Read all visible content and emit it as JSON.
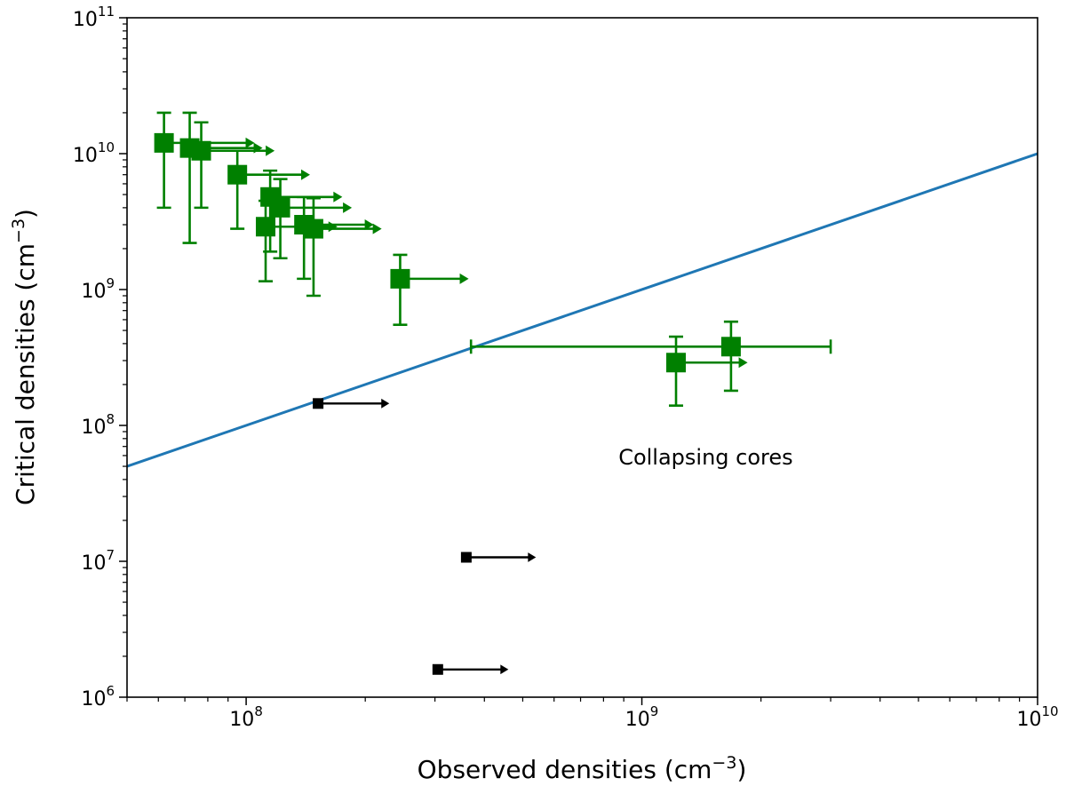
{
  "chart_data": {
    "type": "scatter",
    "title": "",
    "xlabel": {
      "text": "Observed densities (cm",
      "sup": "−3",
      "close": ")"
    },
    "ylabel": {
      "text": "Critical densities (cm",
      "sup": "−3",
      "close": ")"
    },
    "xscale": "log",
    "yscale": "log",
    "xlim": [
      50000000,
      10000000000
    ],
    "ylim": [
      1000000,
      100000000000
    ],
    "x_major_ticks": [
      {
        "value": 100000000,
        "base": "10",
        "exp": "8"
      },
      {
        "value": 1000000000,
        "base": "10",
        "exp": "9"
      },
      {
        "value": 10000000000,
        "base": "10",
        "exp": "10"
      }
    ],
    "y_major_ticks": [
      {
        "value": 1000000,
        "base": "10",
        "exp": "6"
      },
      {
        "value": 10000000,
        "base": "10",
        "exp": "7"
      },
      {
        "value": 100000000,
        "base": "10",
        "exp": "8"
      },
      {
        "value": 1000000000,
        "base": "10",
        "exp": "9"
      },
      {
        "value": 10000000000,
        "base": "10",
        "exp": "10"
      },
      {
        "value": 100000000000,
        "base": "10",
        "exp": "11"
      }
    ],
    "grid": false,
    "legend": null,
    "line": {
      "name": "equality line",
      "color": "#1f77b4",
      "x": [
        50000000,
        10000000000
      ],
      "y": [
        50000000,
        10000000000
      ]
    },
    "series": [
      {
        "name": "green cores",
        "color": "#008000",
        "marker": "square",
        "points": [
          {
            "x": 62000000,
            "y": 12000000000,
            "ylo": 4000000000,
            "yhi": 20000000000,
            "xlimit": 105000000
          },
          {
            "x": 72000000,
            "y": 11000000000,
            "ylo": 2200000000,
            "yhi": 20000000000,
            "xlimit": 110000000
          },
          {
            "x": 77000000,
            "y": 10500000000,
            "ylo": 4000000000,
            "yhi": 17000000000,
            "xlimit": 118000000
          },
          {
            "x": 95000000,
            "y": 7000000000,
            "ylo": 2800000000,
            "yhi": 10500000000,
            "xlimit": 145000000
          },
          {
            "x": 115000000,
            "y": 4800000000,
            "ylo": 1900000000,
            "yhi": 7500000000,
            "xlimit": 175000000
          },
          {
            "x": 122000000,
            "y": 4000000000,
            "ylo": 1700000000,
            "yhi": 6500000000,
            "xlimit": 185000000
          },
          {
            "x": 112000000,
            "y": 2900000000,
            "ylo": 1150000000,
            "yhi": 4500000000,
            "xlimit": 170000000
          },
          {
            "x": 140000000,
            "y": 3000000000,
            "ylo": 1200000000,
            "yhi": 4800000000,
            "xlimit": 210000000
          },
          {
            "x": 148000000,
            "y": 2800000000,
            "ylo": 900000000,
            "yhi": 4700000000,
            "xlimit": 220000000
          },
          {
            "x": 245000000,
            "y": 1200000000,
            "ylo": 550000000,
            "yhi": 1800000000,
            "xlimit": 365000000
          },
          {
            "x": 1220000000,
            "y": 290000000,
            "ylo": 140000000,
            "yhi": 450000000,
            "xlimit": 1850000000
          },
          {
            "x": 1680000000,
            "y": 380000000,
            "ylo": 180000000,
            "yhi": 580000000,
            "xlo": 370000000,
            "xhi": 3000000000
          }
        ]
      },
      {
        "name": "black cores",
        "color": "#000000",
        "marker": "square",
        "points": [
          {
            "x": 152000000,
            "y": 145000000,
            "xlimit": 230000000
          },
          {
            "x": 360000000,
            "y": 10700000,
            "xlimit": 540000000
          },
          {
            "x": 305000000,
            "y": 1600000,
            "xlimit": 460000000
          }
        ]
      }
    ],
    "annotations": [
      {
        "text": "Collapsing cores",
        "x": 1450000000,
        "y": 58000000
      }
    ]
  }
}
